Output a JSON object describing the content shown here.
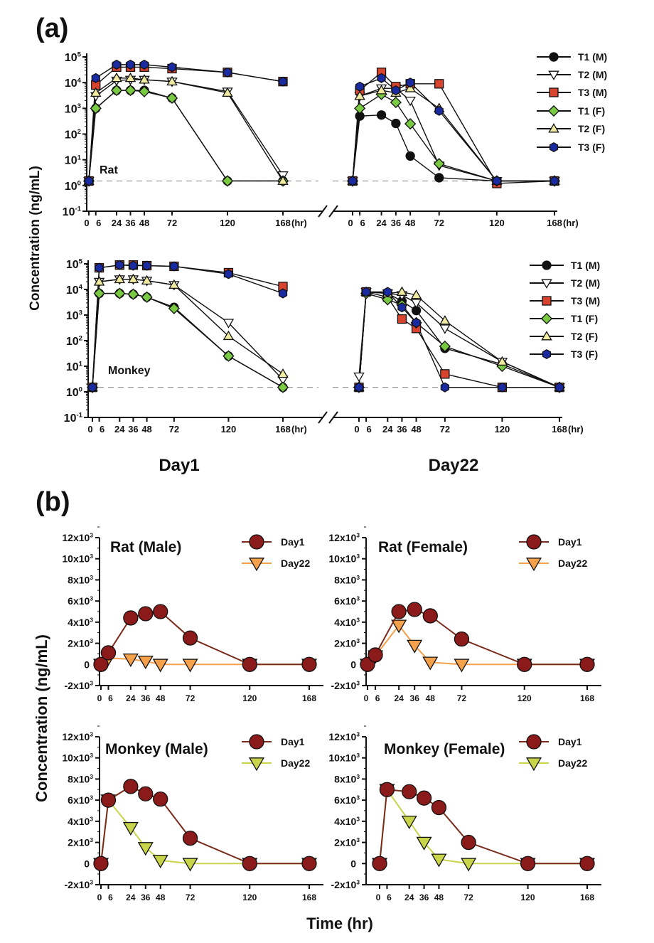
{
  "panel_labels": {
    "a": "(a)",
    "b": "(b)"
  },
  "panel_a": {
    "ylabel": "Concentration (ng/mL)",
    "day_labels": [
      "Day1",
      "Day22"
    ],
    "x_ticks": [
      0,
      6,
      24,
      36,
      48,
      72,
      120,
      168
    ],
    "x_unit": "(hr)",
    "y_exponents": [
      -1,
      0,
      1,
      2,
      3,
      4,
      5
    ],
    "lloq_dashed_line": 1.5,
    "legend": [
      "T1 (M)",
      "T2 (M)",
      "T3 (M)",
      "T1 (F)",
      "T2 (F)",
      "T3 (F)"
    ]
  },
  "panel_b": {
    "ylabel": "Concentration (ng/mL)",
    "xlabel": "Time (hr)",
    "x_ticks": [
      0,
      6,
      24,
      36,
      48,
      72,
      120,
      168
    ],
    "y_ticks": [
      -2,
      0,
      2,
      4,
      6,
      8,
      10,
      12
    ],
    "legend": [
      "Day1",
      "Day22"
    ]
  },
  "chart_data": [
    {
      "type": "line",
      "panel": "a",
      "species": "Rat",
      "label": "Rat",
      "day": "Day1",
      "yscale": "log",
      "ylim": [
        0.1,
        100000
      ],
      "xlim": [
        0,
        168
      ],
      "x": [
        0,
        6,
        24,
        36,
        48,
        72,
        120,
        168
      ],
      "series": [
        {
          "name": "T1 (M)",
          "marker": "circle",
          "color": "#111111",
          "values": [
            1.5,
            1000,
            5000,
            5000,
            5000,
            2500,
            1.5,
            1.5
          ]
        },
        {
          "name": "T2 (M)",
          "marker": "triangle-down",
          "color": "#ffffff",
          "values": [
            1.5,
            3000,
            12000,
            13000,
            13000,
            11000,
            4500,
            2.5
          ]
        },
        {
          "name": "T3 (M)",
          "marker": "square",
          "color": "#d9442e",
          "values": [
            1.5,
            8000,
            40000,
            40000,
            40000,
            35000,
            25000,
            11000
          ]
        },
        {
          "name": "T1 (F)",
          "marker": "diamond",
          "color": "#7ac943",
          "values": [
            1.5,
            1000,
            5000,
            5000,
            4500,
            2500,
            1.5,
            1.5
          ]
        },
        {
          "name": "T2 (F)",
          "marker": "triangle-up",
          "color": "#f0eaa0",
          "values": [
            1.5,
            4000,
            15000,
            15000,
            13000,
            11000,
            4000,
            1.5
          ]
        },
        {
          "name": "T3 (F)",
          "marker": "hexagon",
          "color": "#1a2aa0",
          "values": [
            1.5,
            15000,
            50000,
            50000,
            50000,
            40000,
            25000,
            11000
          ]
        }
      ]
    },
    {
      "type": "line",
      "panel": "a",
      "species": "Rat",
      "day": "Day22",
      "yscale": "log",
      "ylim": [
        0.1,
        100000
      ],
      "xlim": [
        0,
        168
      ],
      "x": [
        0,
        6,
        24,
        36,
        48,
        72,
        120,
        168
      ],
      "series": [
        {
          "name": "T1 (M)",
          "marker": "circle",
          "color": "#111111",
          "values": [
            1.5,
            500,
            550,
            260,
            14,
            2,
            1.5,
            1.5
          ]
        },
        {
          "name": "T2 (M)",
          "marker": "triangle-down",
          "color": "#ffffff",
          "values": [
            1.5,
            3000,
            6000,
            6000,
            2000,
            6,
            1.5,
            1.5
          ]
        },
        {
          "name": "T3 (M)",
          "marker": "square",
          "color": "#d9442e",
          "values": [
            1.5,
            5000,
            25000,
            7000,
            9000,
            9000,
            1.2,
            1.5
          ]
        },
        {
          "name": "T1 (F)",
          "marker": "diamond",
          "color": "#7ac943",
          "values": [
            1.5,
            1000,
            3500,
            1700,
            250,
            7,
            1.5,
            1.5
          ]
        },
        {
          "name": "T2 (F)",
          "marker": "triangle-up",
          "color": "#f0eaa0",
          "values": [
            1.5,
            3000,
            5000,
            4000,
            6000,
            1000,
            1.5,
            1.5
          ]
        },
        {
          "name": "T3 (F)",
          "marker": "hexagon",
          "color": "#1a2aa0",
          "values": [
            1.5,
            7000,
            15000,
            5000,
            10000,
            800,
            1.5,
            1.5
          ]
        }
      ]
    },
    {
      "type": "line",
      "panel": "a",
      "species": "Monkey",
      "label": "Monkey",
      "day": "Day1",
      "yscale": "log",
      "ylim": [
        0.1,
        100000
      ],
      "xlim": [
        0,
        168
      ],
      "x": [
        0,
        6,
        24,
        36,
        48,
        72,
        120,
        168
      ],
      "series": [
        {
          "name": "T1 (M)",
          "marker": "circle",
          "color": "#111111",
          "values": [
            1.5,
            7000,
            7000,
            6500,
            5000,
            2000,
            25,
            1.5
          ]
        },
        {
          "name": "T2 (M)",
          "marker": "triangle-down",
          "color": "#ffffff",
          "values": [
            1.5,
            20000,
            25000,
            25000,
            22000,
            15000,
            500,
            3
          ]
        },
        {
          "name": "T3 (M)",
          "marker": "square",
          "color": "#d9442e",
          "values": [
            1.5,
            70000,
            90000,
            90000,
            85000,
            80000,
            45000,
            13000
          ]
        },
        {
          "name": "T1 (F)",
          "marker": "diamond",
          "color": "#7ac943",
          "values": [
            1.5,
            7000,
            7000,
            6500,
            5000,
            1800,
            25,
            1.5
          ]
        },
        {
          "name": "T2 (F)",
          "marker": "triangle-up",
          "color": "#f0eaa0",
          "values": [
            1.5,
            20000,
            25000,
            25000,
            22000,
            15000,
            150,
            5
          ]
        },
        {
          "name": "T3 (F)",
          "marker": "hexagon",
          "color": "#1a2aa0",
          "values": [
            1.5,
            70000,
            90000,
            85000,
            85000,
            80000,
            40000,
            7000
          ]
        }
      ]
    },
    {
      "type": "line",
      "panel": "a",
      "species": "Monkey",
      "day": "Day22",
      "yscale": "log",
      "ylim": [
        0.1,
        100000
      ],
      "xlim": [
        0,
        168
      ],
      "x": [
        0,
        6,
        24,
        36,
        48,
        72,
        120,
        168
      ],
      "series": [
        {
          "name": "T1 (M)",
          "marker": "circle",
          "color": "#111111",
          "values": [
            1.5,
            8000,
            7000,
            3500,
            1500,
            50,
            12,
            1.5
          ]
        },
        {
          "name": "T2 (M)",
          "marker": "triangle-down",
          "color": "#ffffff",
          "values": [
            4,
            8000,
            7000,
            6000,
            3000,
            300,
            15,
            1.5
          ]
        },
        {
          "name": "T3 (M)",
          "marker": "square",
          "color": "#d9442e",
          "values": [
            1.5,
            8000,
            5000,
            700,
            300,
            5,
            1.5,
            1.5
          ]
        },
        {
          "name": "T1 (F)",
          "marker": "diamond",
          "color": "#7ac943",
          "values": [
            1.5,
            7000,
            4000,
            2500,
            500,
            60,
            10,
            1.5
          ]
        },
        {
          "name": "T2 (F)",
          "marker": "triangle-up",
          "color": "#f0eaa0",
          "values": [
            1.5,
            8000,
            7000,
            8000,
            6000,
            600,
            15,
            1.5
          ]
        },
        {
          "name": "T3 (F)",
          "marker": "hexagon",
          "color": "#1a2aa0",
          "values": [
            1.5,
            8000,
            8000,
            2000,
            500,
            1.5,
            1.5,
            1.5
          ]
        }
      ]
    },
    {
      "type": "line",
      "panel": "b",
      "title": "Rat (Male)",
      "yunit": "x10^3 ng/mL",
      "ylim": [
        -2,
        12
      ],
      "xlim": [
        0,
        168
      ],
      "x": [
        0,
        6,
        24,
        36,
        48,
        72,
        120,
        168
      ],
      "series": [
        {
          "name": "Day1",
          "marker": "circle",
          "color": "#8b1a1a",
          "line": "#7a2a1a",
          "values": [
            0,
            1.1,
            4.4,
            4.8,
            5.0,
            2.5,
            0,
            0
          ]
        },
        {
          "name": "Day22",
          "marker": "triangle-down",
          "color": "#f5a04a",
          "line": "#f5a04a",
          "values": [
            0,
            0.6,
            0.5,
            0.3,
            0,
            0,
            0,
            0
          ]
        }
      ]
    },
    {
      "type": "line",
      "panel": "b",
      "title": "Rat (Female)",
      "yunit": "x10^3 ng/mL",
      "ylim": [
        -2,
        12
      ],
      "xlim": [
        0,
        168
      ],
      "x": [
        0,
        6,
        24,
        36,
        48,
        72,
        120,
        168
      ],
      "series": [
        {
          "name": "Day1",
          "marker": "circle",
          "color": "#8b1a1a",
          "line": "#7a2a1a",
          "values": [
            0,
            0.9,
            5.0,
            5.2,
            4.6,
            2.4,
            0,
            0
          ]
        },
        {
          "name": "Day22",
          "marker": "triangle-down",
          "color": "#f5a04a",
          "line": "#f5a04a",
          "values": [
            0,
            0.8,
            3.7,
            1.8,
            0.2,
            0,
            0,
            0
          ]
        }
      ]
    },
    {
      "type": "line",
      "panel": "b",
      "title": "Monkey (Male)",
      "yunit": "x10^3 ng/mL",
      "ylim": [
        -2,
        12
      ],
      "xlim": [
        0,
        168
      ],
      "x": [
        0,
        6,
        24,
        36,
        48,
        72,
        120,
        168
      ],
      "series": [
        {
          "name": "Day1",
          "marker": "circle",
          "color": "#8b1a1a",
          "line": "#7a2a1a",
          "values": [
            0,
            6.0,
            7.3,
            6.6,
            6.1,
            2.4,
            0,
            0
          ]
        },
        {
          "name": "Day22",
          "marker": "triangle-down",
          "color": "#c8d44a",
          "line": "#c8d44a",
          "values": [
            0,
            6.0,
            3.4,
            1.5,
            0.3,
            0,
            0,
            0
          ]
        }
      ]
    },
    {
      "type": "line",
      "panel": "b",
      "title": "Monkey (Female)",
      "yunit": "x10^3 ng/mL",
      "ylim": [
        -2,
        12
      ],
      "xlim": [
        0,
        168
      ],
      "x": [
        0,
        6,
        24,
        36,
        48,
        72,
        120,
        168
      ],
      "series": [
        {
          "name": "Day1",
          "marker": "circle",
          "color": "#8b1a1a",
          "line": "#7a2a1a",
          "values": [
            0,
            7.0,
            6.8,
            6.2,
            5.3,
            2.0,
            0,
            0
          ]
        },
        {
          "name": "Day22",
          "marker": "triangle-down",
          "color": "#c8d44a",
          "line": "#c8d44a",
          "values": [
            0,
            7.0,
            4.0,
            2.0,
            0.4,
            0,
            0,
            0
          ]
        }
      ]
    }
  ]
}
